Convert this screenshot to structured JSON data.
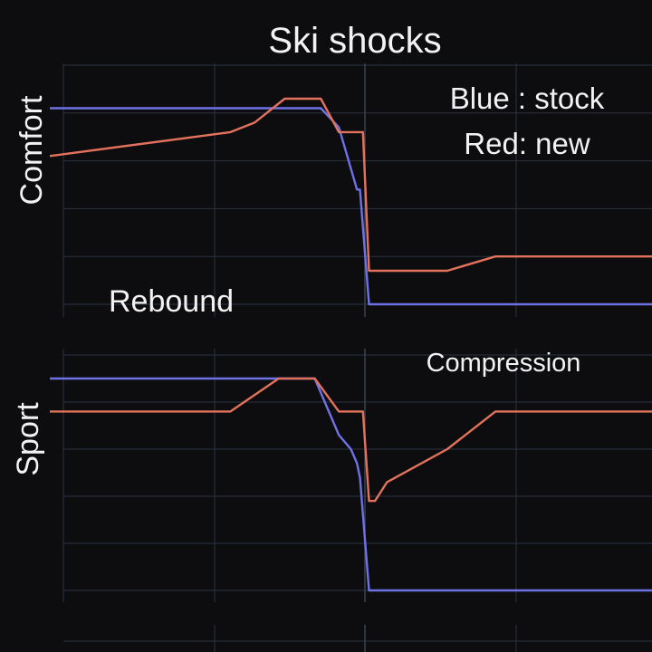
{
  "title": "Ski shocks",
  "legend": {
    "line1": "Blue : stock",
    "line2": "Red: new"
  },
  "colors": {
    "stock": "#6f72e6",
    "new": "#e2725b",
    "background": "#0d0d0f",
    "grid": "#2a3340"
  },
  "chart_data": [
    {
      "type": "line",
      "panel": "Comfort",
      "ylabel": "Comfort",
      "annotation": "Rebound",
      "xlim": [
        0,
        100
      ],
      "ylim": [
        0,
        5
      ],
      "grid": true,
      "legend_position": "top-right",
      "series": [
        {
          "name": "stock",
          "x": [
            0,
            41,
            45,
            48,
            51,
            51.5,
            53,
            100
          ],
          "y": [
            4.1,
            4.1,
            4.1,
            3.7,
            2.4,
            2.4,
            0,
            0
          ]
        },
        {
          "name": "new",
          "x": [
            0,
            30,
            34,
            39,
            42,
            45,
            48,
            52,
            53,
            57,
            66,
            74,
            100
          ],
          "y": [
            3.1,
            3.6,
            3.8,
            4.3,
            4.3,
            4.3,
            3.6,
            3.6,
            0.7,
            0.7,
            0.7,
            1.0,
            1.0
          ]
        }
      ]
    },
    {
      "type": "line",
      "panel": "Sport",
      "ylabel": "Sport",
      "annotation": "Compression",
      "xlim": [
        0,
        100
      ],
      "ylim": [
        0,
        5
      ],
      "grid": true,
      "series": [
        {
          "name": "stock",
          "x": [
            0,
            38,
            42,
            44,
            48,
            50,
            51,
            51.5,
            53,
            100
          ],
          "y": [
            4.5,
            4.5,
            4.5,
            4.5,
            3.3,
            3.0,
            2.7,
            2.4,
            0,
            0
          ]
        },
        {
          "name": "new",
          "x": [
            0,
            30,
            38,
            42,
            44,
            48,
            52,
            53,
            54,
            56,
            66,
            74,
            100
          ],
          "y": [
            3.8,
            3.8,
            4.5,
            4.5,
            4.5,
            3.8,
            3.8,
            1.9,
            1.9,
            2.3,
            3.0,
            3.8,
            3.8
          ]
        }
      ]
    }
  ]
}
